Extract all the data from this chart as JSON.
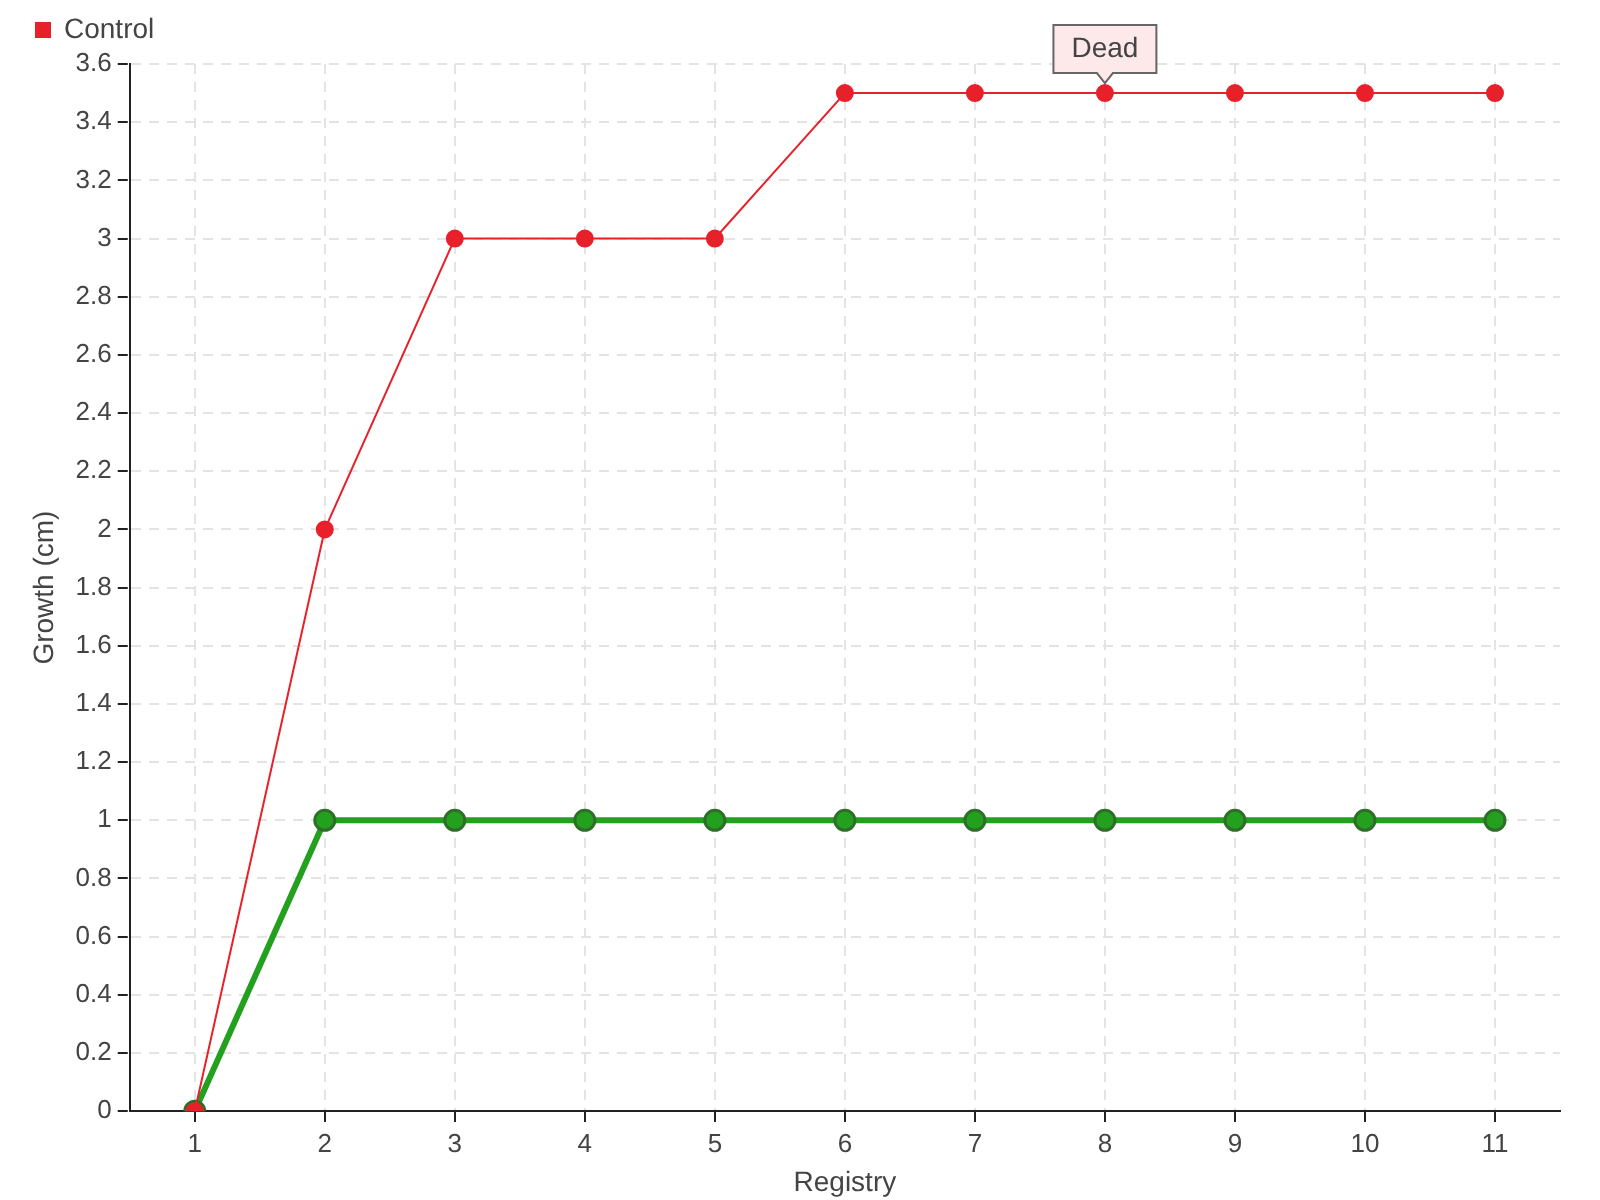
{
  "chart_data": {
    "type": "line",
    "xlabel": "Registry",
    "ylabel": "Growth (cm)",
    "categories": [
      "1",
      "2",
      "3",
      "4",
      "5",
      "6",
      "7",
      "8",
      "9",
      "10",
      "11"
    ],
    "series": [
      {
        "color": "#22a01e",
        "values": [
          0,
          1,
          1,
          1,
          1,
          1,
          1,
          1,
          1,
          1,
          1
        ]
      },
      {
        "name": "Control",
        "color": "#e8202a",
        "values": [
          0,
          2,
          3,
          3,
          3,
          3.5,
          3.5,
          3.5,
          3.5,
          3.5,
          3.5
        ]
      }
    ],
    "ylim": [
      0,
      3.6
    ],
    "yticks": [
      0,
      0.2,
      0.4,
      0.6,
      0.8,
      1,
      1.2,
      1.4,
      1.6,
      1.8,
      2,
      2.2,
      2.4,
      2.6,
      2.8,
      3,
      3.2,
      3.4,
      3.6
    ],
    "annotations": [
      {
        "text": "Dead",
        "x": "8",
        "y": 3.5
      }
    ],
    "grid": true,
    "legend": "top left",
    "marker": "circle",
    "line_style": "solid"
  }
}
